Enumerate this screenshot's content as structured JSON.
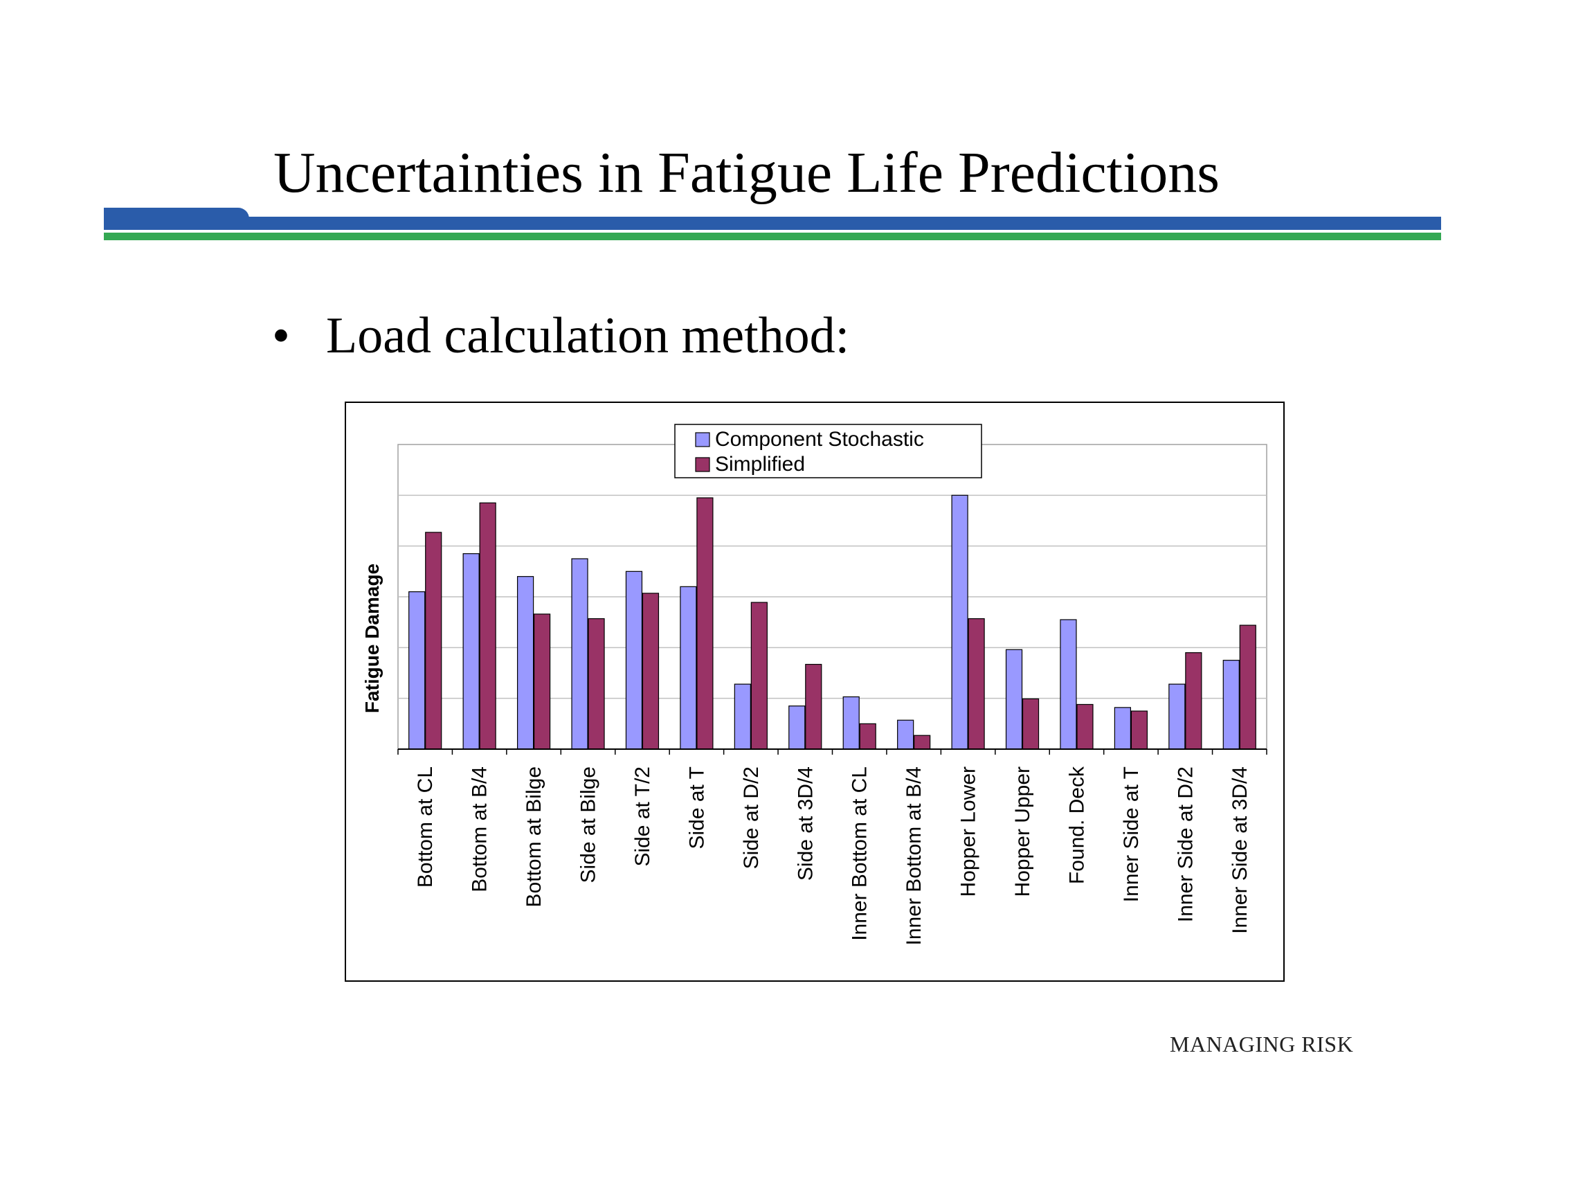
{
  "slide": {
    "title": "Uncertainties in Fatigue Life Predictions",
    "bullet_marker": "•",
    "bullet_text": "Load calculation method:",
    "footer": "MANAGING RISK"
  },
  "colors": {
    "title_rule_blue": "#2a5caa",
    "title_rule_green": "#34a853",
    "series_component": "#9999ff",
    "series_simplified": "#993366",
    "gridline": "#c0c0c0"
  },
  "chart_data": {
    "type": "bar",
    "title": "",
    "xlabel": "",
    "ylabel": "Fatigue Damage",
    "ylim": [
      0,
      6
    ],
    "grid": true,
    "y_tick_labels_shown": false,
    "legend_position": "top-center",
    "categories": [
      "Bottom at CL",
      "Bottom at B/4",
      "Bottom at Bilge",
      "Side at Bilge",
      "Side at T/2",
      "Side at T",
      "Side at D/2",
      "Side at 3D/4",
      "Inner Bottom at CL",
      "Inner Bottom at B/4",
      "Hopper Lower",
      "Hopper Upper",
      "Found. Deck",
      "Inner Side at T",
      "Inner Side at D/2",
      "Inner Side at 3D/4"
    ],
    "series": [
      {
        "name": "Component Stochastic",
        "values": [
          3.1,
          3.85,
          3.4,
          3.75,
          3.5,
          3.2,
          1.28,
          0.85,
          1.03,
          0.57,
          5.0,
          1.96,
          2.55,
          0.82,
          1.28,
          1.75
        ]
      },
      {
        "name": "Simplified",
        "values": [
          4.27,
          4.85,
          2.66,
          2.57,
          3.07,
          4.95,
          2.89,
          1.67,
          0.5,
          0.27,
          2.57,
          0.99,
          0.88,
          0.75,
          1.9,
          2.44
        ]
      }
    ]
  }
}
